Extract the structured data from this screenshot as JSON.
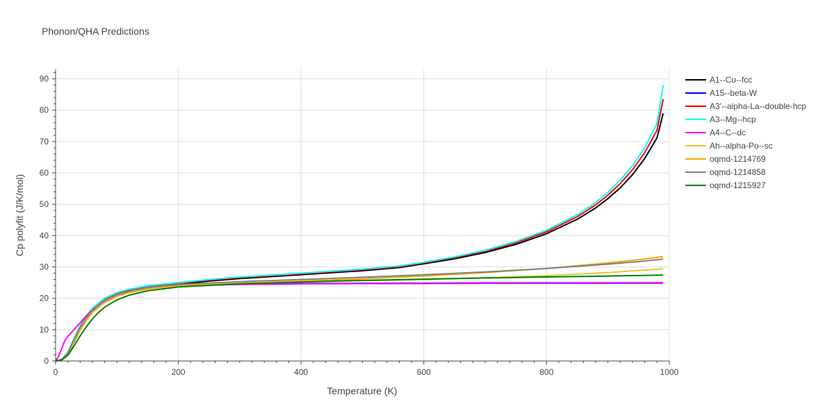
{
  "chart_data": {
    "type": "line",
    "title": "Phonon/QHA Predictions",
    "xlabel": "Temperature (K)",
    "ylabel": "Cp polyfit (J/K/mol)",
    "xlim": [
      0,
      1000
    ],
    "ylim": [
      0,
      93
    ],
    "xticks": [
      0,
      200,
      400,
      600,
      800,
      1000
    ],
    "yticks": [
      0,
      10,
      20,
      30,
      40,
      50,
      60,
      70,
      80,
      90
    ],
    "grid": true,
    "legend_position": "right",
    "series": [
      {
        "name": "A1--Cu--fcc",
        "color": "#000000",
        "x": [
          0,
          10,
          20,
          30,
          40,
          50,
          60,
          80,
          100,
          120,
          150,
          200,
          250,
          300,
          400,
          500,
          560,
          600,
          650,
          700,
          750,
          800,
          850,
          880,
          900,
          920,
          940,
          960,
          980,
          990
        ],
        "y": [
          0,
          0.5,
          2.5,
          6.5,
          10.5,
          13.5,
          16,
          19.3,
          21.2,
          22.4,
          23.6,
          24.5,
          25.5,
          26.3,
          27.5,
          28.8,
          29.8,
          31,
          32.6,
          34.6,
          37.2,
          40.6,
          45.2,
          48.8,
          51.8,
          55.2,
          59.4,
          64.6,
          71.2,
          79
        ]
      },
      {
        "name": "A15--beta-W",
        "color": "#0000ff",
        "x": [
          0,
          10,
          20,
          30,
          40,
          50,
          60,
          80,
          100,
          120,
          150,
          200,
          300,
          400,
          500,
          600,
          700,
          800,
          900,
          990
        ],
        "y": [
          0,
          0.5,
          2.5,
          6.5,
          10.5,
          13.6,
          16.1,
          19.2,
          21,
          22.1,
          23.2,
          24,
          24.5,
          24.7,
          24.8,
          24.8,
          24.9,
          24.9,
          24.9,
          24.9
        ]
      },
      {
        "name": "A3'--alpha-La--double-hcp",
        "color": "#ff0000",
        "x": [
          0,
          10,
          20,
          30,
          40,
          50,
          60,
          80,
          100,
          120,
          150,
          200,
          250,
          300,
          400,
          500,
          560,
          600,
          650,
          700,
          750,
          800,
          850,
          880,
          900,
          920,
          940,
          960,
          980,
          990
        ],
        "y": [
          0,
          0.5,
          2.7,
          7,
          11,
          14,
          16.5,
          19.6,
          21.5,
          22.6,
          23.8,
          24.8,
          25.8,
          26.6,
          27.8,
          29.1,
          30.1,
          31.3,
          33,
          35,
          37.7,
          41.2,
          46,
          49.8,
          52.9,
          56.6,
          61,
          66.5,
          73.6,
          83.5
        ]
      },
      {
        "name": "A3--Mg--hcp",
        "color": "#00ffff",
        "x": [
          0,
          10,
          20,
          30,
          40,
          50,
          60,
          80,
          100,
          120,
          150,
          200,
          250,
          300,
          400,
          500,
          560,
          600,
          650,
          700,
          750,
          800,
          850,
          880,
          900,
          920,
          940,
          960,
          980,
          990
        ],
        "y": [
          0,
          0.5,
          2.8,
          7.2,
          11.3,
          14.4,
          16.9,
          20,
          21.8,
          22.9,
          24,
          25,
          26,
          26.8,
          28,
          29.3,
          30.3,
          31.5,
          33.2,
          35.3,
          38.1,
          41.7,
          46.6,
          50.6,
          53.8,
          57.7,
          62.3,
          68,
          75.8,
          88
        ]
      },
      {
        "name": "A4--C--dc",
        "color": "#ff00ff",
        "x": [
          0,
          5,
          10,
          15,
          20,
          30,
          40,
          50,
          60,
          80,
          100,
          120,
          150,
          200,
          300,
          400,
          500,
          600,
          700,
          800,
          900,
          990
        ],
        "y": [
          0,
          1.5,
          4,
          6.5,
          7.8,
          10,
          12.2,
          14.4,
          16.3,
          19.2,
          21,
          22.1,
          23.1,
          24,
          24.4,
          24.6,
          24.7,
          24.7,
          24.8,
          24.8,
          24.8,
          24.8
        ]
      },
      {
        "name": "Ah--alpha-Po--sc",
        "color": "#e8c530",
        "x": [
          0,
          10,
          20,
          30,
          40,
          50,
          60,
          80,
          100,
          120,
          150,
          200,
          300,
          400,
          500,
          600,
          700,
          800,
          900,
          990
        ],
        "y": [
          0,
          0.5,
          2.4,
          6.2,
          10,
          13.1,
          15.6,
          18.8,
          20.7,
          21.9,
          23,
          24,
          24.7,
          25.2,
          25.6,
          26,
          26.5,
          27.2,
          28.2,
          29.4
        ]
      },
      {
        "name": "oqmd-1214769",
        "color": "#ffa500",
        "x": [
          0,
          10,
          20,
          30,
          40,
          50,
          60,
          80,
          100,
          120,
          150,
          200,
          300,
          400,
          500,
          600,
          700,
          800,
          850,
          900,
          950,
          990
        ],
        "y": [
          0,
          0.5,
          2.3,
          6,
          9.8,
          12.9,
          15.5,
          18.7,
          20.6,
          21.8,
          23,
          24,
          24.8,
          25.5,
          26.2,
          27.1,
          28.2,
          29.5,
          30.4,
          31.3,
          32.3,
          33.3
        ]
      },
      {
        "name": "oqmd-1214858",
        "color": "#808080",
        "x": [
          0,
          10,
          20,
          30,
          40,
          50,
          60,
          80,
          100,
          120,
          150,
          200,
          300,
          400,
          500,
          600,
          700,
          800,
          850,
          900,
          950,
          990
        ],
        "y": [
          0,
          0.5,
          2.6,
          6.8,
          10.8,
          13.8,
          16.3,
          19.4,
          21.2,
          22.3,
          23.5,
          24.4,
          25.3,
          26,
          26.7,
          27.5,
          28.4,
          29.5,
          30.2,
          30.9,
          31.7,
          32.5
        ]
      },
      {
        "name": "oqmd-1215927",
        "color": "#008000",
        "x": [
          0,
          10,
          20,
          30,
          40,
          50,
          60,
          70,
          80,
          100,
          120,
          150,
          200,
          300,
          400,
          500,
          600,
          700,
          800,
          900,
          990
        ],
        "y": [
          0,
          0.3,
          1.8,
          4.8,
          8,
          10.9,
          13.4,
          15.5,
          17.2,
          19.5,
          21,
          22.4,
          23.6,
          24.6,
          25.2,
          25.7,
          26.1,
          26.5,
          26.8,
          27.1,
          27.4
        ]
      }
    ]
  }
}
